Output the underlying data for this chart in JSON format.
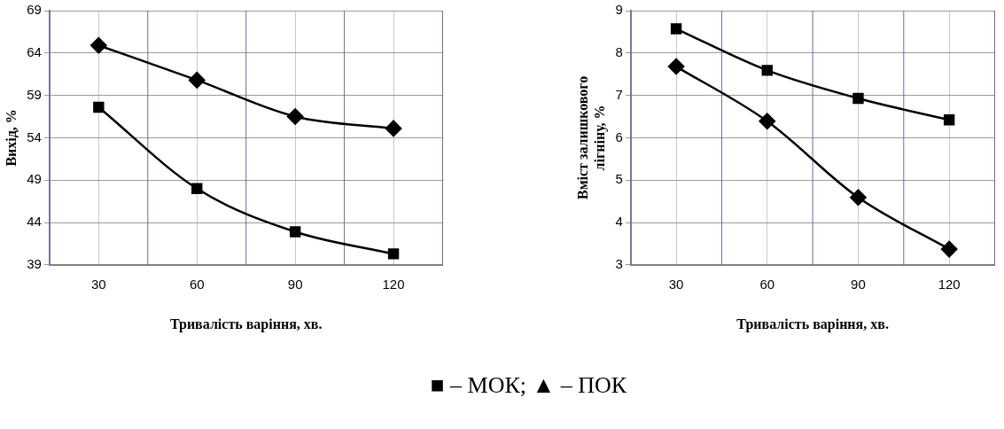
{
  "chart_data": [
    {
      "type": "line",
      "xlabel": "Тривалість варіння, хв.",
      "ylabel": "Вихід, %",
      "categories": [
        "30",
        "60",
        "90",
        "120"
      ],
      "ylim": [
        39,
        69
      ],
      "yticks": [
        39,
        44,
        49,
        54,
        59,
        64,
        69
      ],
      "grid": true,
      "legend": false,
      "series": [
        {
          "color": "#000000",
          "marker": "diamond",
          "values": [
            64.9,
            60.8,
            56.5,
            55.1
          ]
        },
        {
          "color": "#000000",
          "marker": "square",
          "values": [
            57.6,
            48.0,
            42.9,
            40.3
          ]
        }
      ]
    },
    {
      "type": "line",
      "xlabel": "Тривалість варіння, хв.",
      "ylabel": "Вміст залишкового лігніну, %",
      "categories": [
        "30",
        "60",
        "90",
        "120"
      ],
      "ylim": [
        3,
        9
      ],
      "yticks": [
        3,
        4,
        5,
        6,
        7,
        8,
        9
      ],
      "grid": true,
      "legend": false,
      "annotations": [
        "■ – МОК; ▲ – ПОК"
      ],
      "series": [
        {
          "color": "#000000",
          "marker": "square",
          "values": [
            8.57,
            7.59,
            6.93,
            6.42
          ]
        },
        {
          "color": "#000000",
          "marker": "diamond",
          "values": [
            7.68,
            6.39,
            4.59,
            3.37
          ]
        }
      ]
    }
  ]
}
